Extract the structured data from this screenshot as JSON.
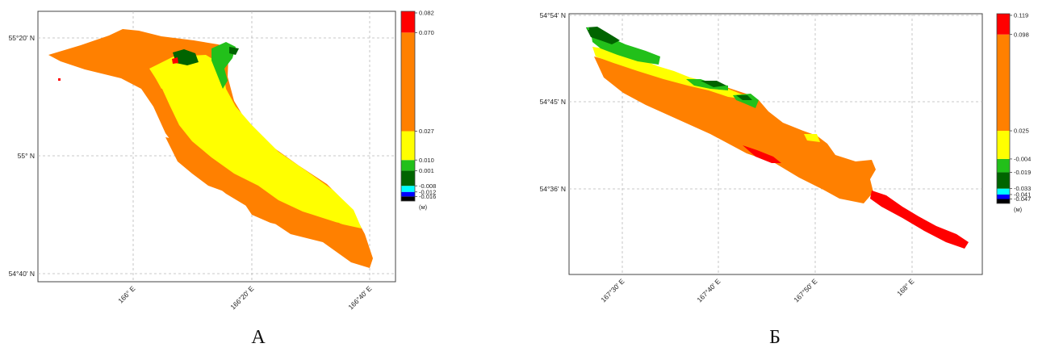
{
  "colors": {
    "black": "#000000",
    "blue": "#0000ff",
    "cyan": "#00ffff",
    "dark_green": "#006400",
    "green": "#22c01a",
    "yellow": "#ffff00",
    "orange": "#ff8000",
    "red": "#ff0000",
    "grid": "#b9b9b9"
  },
  "panels": [
    {
      "letter": "А",
      "lat_labels": [
        "55°20' N",
        "55° N",
        "54°40' N"
      ],
      "lon_labels": [
        "166° E",
        "166°20' E",
        "166°40' E"
      ],
      "colorbar": {
        "unit": "(м)",
        "classes": [
          {
            "color": "black",
            "upper": -0.016
          },
          {
            "color": "blue",
            "upper": -0.012
          },
          {
            "color": "cyan",
            "upper": -0.008
          },
          {
            "color": "dark_green",
            "upper": 0.001
          },
          {
            "color": "green",
            "upper": 0.01
          },
          {
            "color": "yellow",
            "upper": 0.027
          },
          {
            "color": "orange",
            "upper": 0.07
          },
          {
            "color": "red",
            "upper": 0.082
          }
        ],
        "tick_labels": [
          "0.082",
          "0.070",
          "0.027",
          "0.010",
          "0.001",
          "-0.008",
          "-0.012",
          "-0.016"
        ]
      }
    },
    {
      "letter": "Б",
      "lat_labels": [
        "54°54' N",
        "54°45' N",
        "54°36' N"
      ],
      "lon_labels": [
        "167°30' E",
        "167°40' E",
        "167°50' E",
        "168° E"
      ],
      "colorbar": {
        "unit": "(м)",
        "classes": [
          {
            "color": "black",
            "upper": -0.047
          },
          {
            "color": "blue",
            "upper": -0.041
          },
          {
            "color": "cyan",
            "upper": -0.033
          },
          {
            "color": "dark_green",
            "upper": -0.019
          },
          {
            "color": "green",
            "upper": -0.004
          },
          {
            "color": "yellow",
            "upper": 0.025
          },
          {
            "color": "orange",
            "upper": 0.098
          },
          {
            "color": "red",
            "upper": 0.119
          }
        ],
        "tick_labels": [
          "0.119",
          "0.098",
          "0.025",
          "-0.004",
          "-0.019",
          "-0.033",
          "-0.041",
          "-0.047"
        ]
      }
    }
  ]
}
